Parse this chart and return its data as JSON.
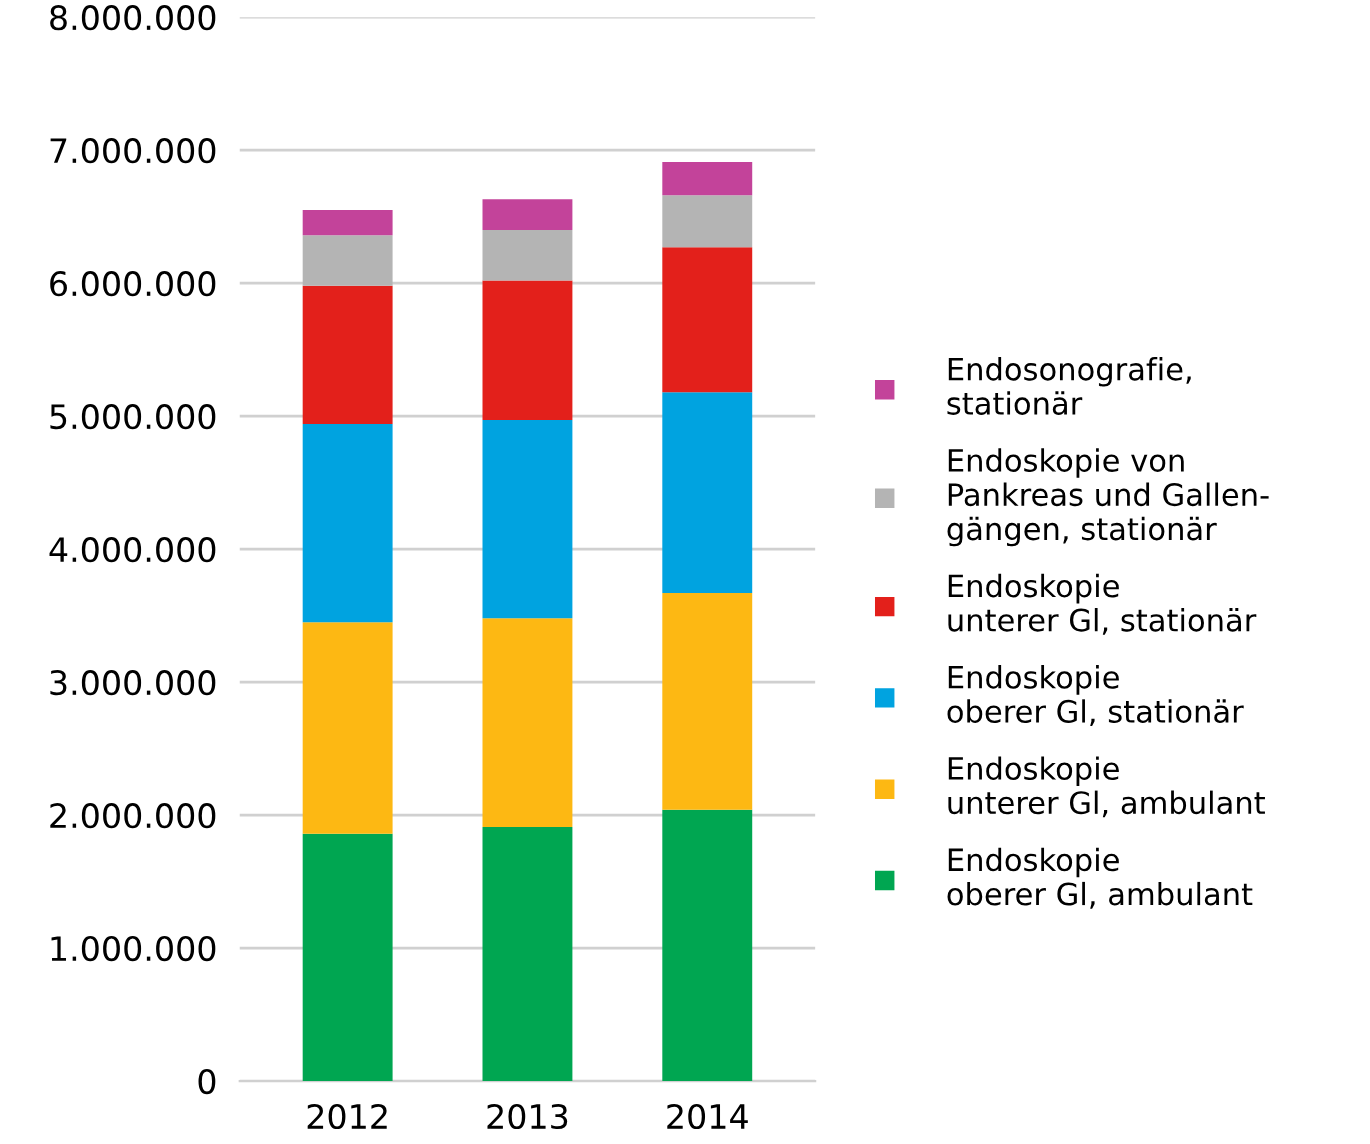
{
  "chart_data": {
    "type": "bar",
    "stacked": true,
    "categories": [
      "2012",
      "2013",
      "2014"
    ],
    "series": [
      {
        "name": "Endoskopie\noberer Gl, ambulant",
        "color": "#00a651",
        "values": [
          1860000,
          1910000,
          2040000
        ]
      },
      {
        "name": "Endoskopie\nunterer Gl, ambulant",
        "color": "#fdb813",
        "values": [
          1590000,
          1570000,
          1630000
        ]
      },
      {
        "name": "Endoskopie\noberer Gl, stationär",
        "color": "#00a3e0",
        "values": [
          1490000,
          1490000,
          1510000
        ]
      },
      {
        "name": "Endoskopie\nunterer Gl, stationär",
        "color": "#e3201b",
        "values": [
          1040000,
          1050000,
          1090000
        ]
      },
      {
        "name": "Endoskopie von\nPankreas und Gallen-\ngängen, stationär",
        "color": "#b4b4b4",
        "values": [
          380000,
          380000,
          390000
        ]
      },
      {
        "name": "Endosonografie,\nstationär",
        "color": "#c3439a",
        "values": [
          190000,
          230000,
          250000
        ]
      }
    ],
    "ylim": [
      0,
      8000000
    ],
    "yticks": [
      0,
      {
        "value": 1000000,
        "label": "1.000.000"
      },
      {
        "value": 2000000,
        "label": "2.000.000"
      },
      {
        "value": 3000000,
        "label": "3.000.000"
      },
      {
        "value": 4000000,
        "label": "4.000.000"
      },
      {
        "value": 5000000,
        "label": "5.000.000"
      },
      {
        "value": 6000000,
        "label": "6.000.000"
      },
      {
        "value": 7000000,
        "label": "7.000.000"
      },
      {
        "value": 8000000,
        "label": "8.000.000"
      }
    ],
    "grid": "y",
    "legend": "right"
  }
}
